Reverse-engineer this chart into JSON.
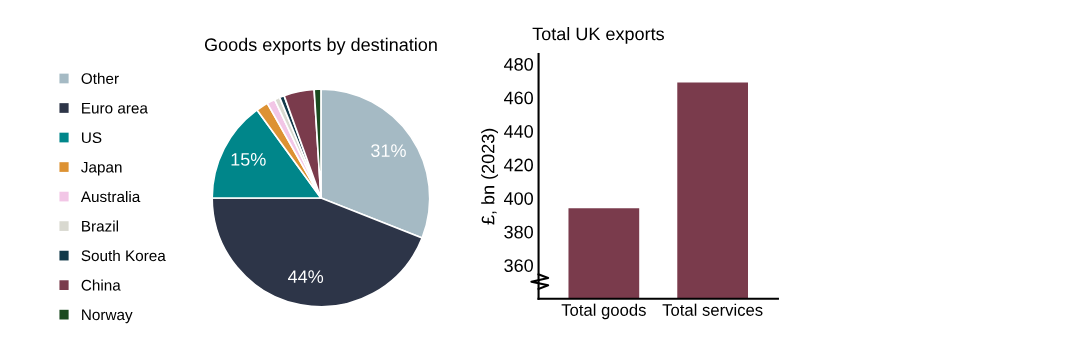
{
  "chart_data": [
    {
      "type": "pie",
      "title": "Goods exports by destination",
      "categories": [
        "Other",
        "Euro area",
        "US",
        "Japan",
        "Australia",
        "Brazil",
        "South Korea",
        "China",
        "Norway"
      ],
      "values": [
        31,
        44,
        15,
        1.8,
        1.2,
        0.8,
        0.7,
        4.5,
        1.0
      ],
      "colors": [
        "#a5bac4",
        "#2d3548",
        "#00868a",
        "#dd9233",
        "#f2c6e6",
        "#d9d9d0",
        "#123a4a",
        "#7a3b4c",
        "#1a4a1f"
      ],
      "value_labels": [
        "31%",
        "44%",
        "15%",
        null,
        null,
        null,
        null,
        null,
        null
      ],
      "legend": "left"
    },
    {
      "type": "bar",
      "title": "Total UK exports",
      "ylabel": "£, bn (2023)",
      "categories": [
        "Total goods",
        "Total services"
      ],
      "values": [
        394,
        469
      ],
      "color": "#7a3b4c",
      "ylim": [
        340,
        486
      ],
      "yticks": [
        360,
        380,
        400,
        420,
        440,
        460,
        480
      ],
      "grid": false
    }
  ]
}
